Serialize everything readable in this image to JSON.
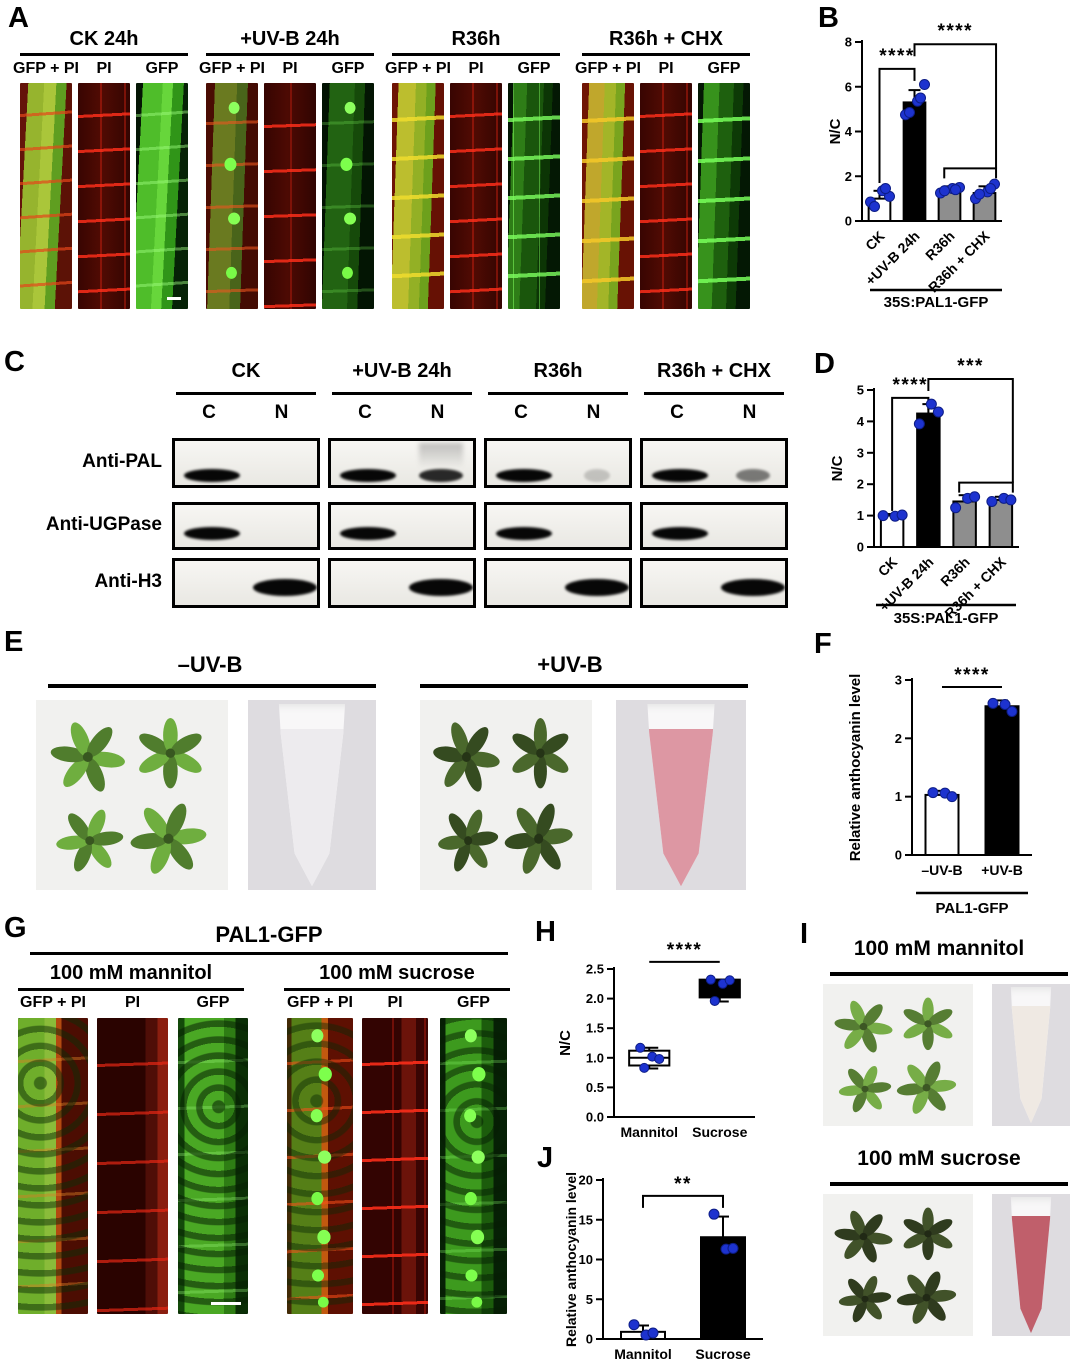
{
  "colors": {
    "point_blue": "#1d33cf",
    "point_edge": "#0d1d86",
    "bar_gray": "#8e8e8e",
    "confocal_green": "#49c12a",
    "confocal_red": "#d41f0a"
  },
  "panelA": {
    "letter": "A",
    "groups": [
      {
        "title": "CK 24h",
        "channels": [
          "GFP + PI",
          "PI",
          "GFP"
        ]
      },
      {
        "title": "+UV-B 24h",
        "channels": [
          "GFP + PI",
          "PI",
          "GFP"
        ]
      },
      {
        "title": "R36h",
        "channels": [
          "GFP + PI",
          "PI",
          "GFP"
        ]
      },
      {
        "title": "R36h + CHX",
        "channels": [
          "GFP + PI",
          "PI",
          "GFP"
        ]
      }
    ]
  },
  "panelB": {
    "letter": "B"
  },
  "panelC": {
    "letter": "C",
    "col_groups": [
      "CK",
      "+UV-B 24h",
      "R36h",
      "R36h + CHX"
    ],
    "lanes": [
      "C",
      "N"
    ],
    "rows": [
      {
        "label": "Anti-PAL",
        "bands": [
          [
            "strong",
            "none"
          ],
          [
            "strong",
            "medium_smear"
          ],
          [
            "strong",
            "trace"
          ],
          [
            "strong",
            "faint"
          ]
        ]
      },
      {
        "label": "Anti-UGPase",
        "bands": [
          [
            "strong",
            "none"
          ],
          [
            "strong",
            "none"
          ],
          [
            "strong",
            "none"
          ],
          [
            "strong",
            "none"
          ]
        ]
      },
      {
        "label": "Anti-H3",
        "bands": [
          [
            "none",
            "strong"
          ],
          [
            "none",
            "strong"
          ],
          [
            "none",
            "strong"
          ],
          [
            "none",
            "strong"
          ]
        ]
      }
    ]
  },
  "panelD": {
    "letter": "D"
  },
  "panelE": {
    "letter": "E",
    "groups": [
      {
        "title": "–UV-B",
        "tube_fill": "#edebee",
        "seedling_color": "#6fae3f"
      },
      {
        "title": "+UV-B",
        "tube_fill": "#dd97a3",
        "seedling_color": "#4a682c"
      }
    ]
  },
  "panelF": {
    "letter": "F"
  },
  "panelG": {
    "letter": "G",
    "title": "PAL1-GFP",
    "groups": [
      {
        "title": "100 mM mannitol",
        "channels": [
          "GFP + PI",
          "PI",
          "GFP"
        ]
      },
      {
        "title": "100 mM sucrose",
        "channels": [
          "GFP + PI",
          "PI",
          "GFP"
        ]
      }
    ]
  },
  "panelH": {
    "letter": "H"
  },
  "panelI": {
    "letter": "I",
    "groups": [
      {
        "title": "100 mM mannitol",
        "tube_fill": "#efe9e3",
        "seedling_color": "#77ad47"
      },
      {
        "title": "100 mM sucrose",
        "tube_fill": "#c05f6b",
        "seedling_color": "#415229"
      }
    ]
  },
  "panelJ": {
    "letter": "J"
  },
  "chart_data": [
    {
      "id": "B",
      "type": "bar",
      "ylabel": "N/C",
      "ylim": [
        0,
        8
      ],
      "yticks": [
        "0",
        "2",
        "4",
        "6",
        "8"
      ],
      "categories": [
        "CK",
        "+UV-B 24h",
        "R36h",
        "R36h + CHX"
      ],
      "values": [
        1.0,
        5.3,
        1.35,
        1.25
      ],
      "errors": [
        0.35,
        0.55,
        0.2,
        0.3
      ],
      "bar_colors": [
        "#ffffff",
        "#000000",
        "#8e8e8e",
        "#8e8e8e"
      ],
      "points": [
        [
          0.85,
          1.35,
          1.1,
          0.65,
          1.45
        ],
        [
          4.75,
          5.35,
          6.1,
          4.85,
          5.5
        ],
        [
          1.25,
          1.45,
          1.5,
          1.35,
          1.4
        ],
        [
          1.0,
          1.3,
          1.65,
          1.2,
          1.45
        ]
      ],
      "group_label": "35S:PAL1-GFP",
      "grid": false,
      "legend": null,
      "significance": [
        {
          "type": "stair",
          "a": 0,
          "b": 1,
          "y": 6.8,
          "a_drop": 1.7,
          "label": "****"
        },
        {
          "type": "step2",
          "a": 1,
          "span": [
            2,
            3
          ],
          "y": 7.9,
          "y_span": 2.35,
          "label": "****"
        }
      ]
    },
    {
      "id": "D",
      "type": "bar",
      "ylabel": "N/C",
      "ylim": [
        0,
        5
      ],
      "yticks": [
        "0",
        "1",
        "2",
        "3",
        "4",
        "5"
      ],
      "categories": [
        "CK",
        "+UV-B 24h",
        "R36h",
        "R36h + CHX"
      ],
      "values": [
        1.0,
        4.25,
        1.45,
        1.5
      ],
      "errors": [
        0.05,
        0.3,
        0.2,
        0.1
      ],
      "bar_colors": [
        "#ffffff",
        "#000000",
        "#8e8e8e",
        "#8e8e8e"
      ],
      "points": [
        [
          1.0,
          0.98,
          1.02
        ],
        [
          3.92,
          4.55,
          4.3
        ],
        [
          1.25,
          1.55,
          1.6
        ],
        [
          1.45,
          1.55,
          1.5
        ]
      ],
      "group_label": "35S:PAL1-GFP",
      "grid": false,
      "legend": null,
      "significance": [
        {
          "type": "stair",
          "a": 0,
          "b": 1,
          "y": 4.75,
          "a_drop": 1.15,
          "label": "****"
        },
        {
          "type": "step2",
          "a": 1,
          "span": [
            2,
            3
          ],
          "y": 5.35,
          "y_span": 2.05,
          "label": "***"
        }
      ]
    },
    {
      "id": "F",
      "type": "bar",
      "ylabel": "Relative anthocyanin level",
      "ylim": [
        0,
        3
      ],
      "yticks": [
        "0",
        "1",
        "2",
        "3"
      ],
      "categories": [
        "–UV-B",
        "+UV-B"
      ],
      "values": [
        1.03,
        2.55
      ],
      "errors": [
        0.07,
        0.1
      ],
      "bar_colors": [
        "#ffffff",
        "#000000"
      ],
      "points": [
        [
          1.07,
          1.06,
          1.0
        ],
        [
          2.6,
          2.58,
          2.46
        ]
      ],
      "group_label": "PAL1-GFP",
      "grid": false,
      "legend": null,
      "significance": [
        {
          "type": "line",
          "a": 0,
          "b": 1,
          "y": 2.88,
          "label": "****"
        }
      ]
    },
    {
      "id": "H",
      "type": "box",
      "ylabel": "N/C",
      "ylim": [
        0,
        2.5
      ],
      "yticks": [
        "0.0",
        "0.5",
        "1.0",
        "1.5",
        "2.0",
        "2.5"
      ],
      "categories": [
        "Mannitol",
        "Sucrose"
      ],
      "boxes": [
        {
          "lo": 0.82,
          "q1": 0.87,
          "med": 1.0,
          "q3": 1.12,
          "hi": 1.17,
          "fill": "#ffffff"
        },
        {
          "lo": 1.95,
          "q1": 2.02,
          "med": 2.27,
          "q3": 2.32,
          "hi": 2.32,
          "fill": "#000000"
        }
      ],
      "points": [
        [
          1.17,
          1.02,
          0.98,
          0.83
        ],
        [
          2.32,
          2.25,
          2.31,
          1.96
        ]
      ],
      "grid": false,
      "legend": null,
      "significance": [
        {
          "type": "line",
          "a": 0,
          "b": 1,
          "y": 2.62,
          "label": "****"
        }
      ]
    },
    {
      "id": "J",
      "type": "bar",
      "ylabel": "Relative anthocyanin level",
      "ylim": [
        0,
        20
      ],
      "yticks": [
        "0",
        "5",
        "10",
        "15",
        "20"
      ],
      "categories": [
        "Mannitol",
        "Sucrose"
      ],
      "values": [
        0.9,
        12.8
      ],
      "errors": [
        0.8,
        2.6
      ],
      "bar_colors": [
        "#ffffff",
        "#000000"
      ],
      "points": [
        [
          1.8,
          0.5,
          0.75
        ],
        [
          15.7,
          11.3,
          11.4
        ]
      ],
      "grid": false,
      "legend": null,
      "significance": [
        {
          "type": "bracket",
          "a": 0,
          "b": 1,
          "y": 18.0,
          "label": "**"
        }
      ]
    }
  ]
}
